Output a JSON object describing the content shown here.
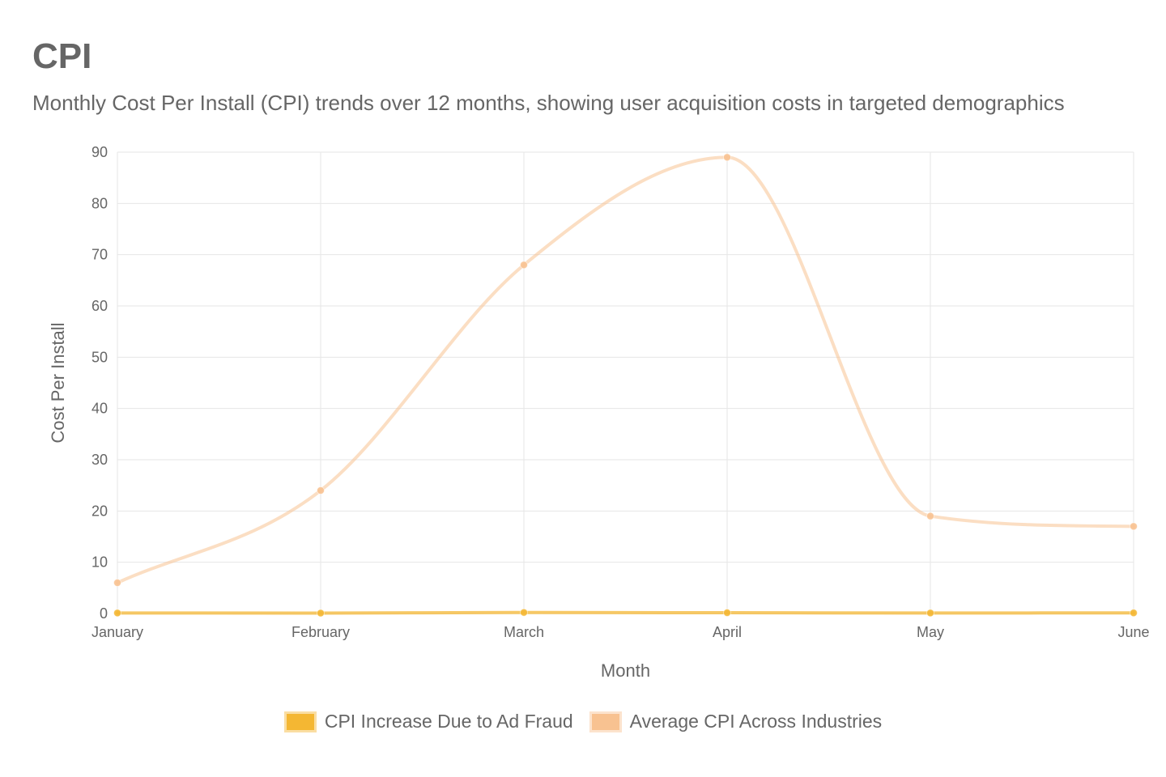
{
  "page": {
    "title": "CPI",
    "subtitle": "Monthly Cost Per Install (CPI) trends over 12 months, showing user acquisition costs in targeted demographics"
  },
  "chart_data": {
    "type": "line",
    "title": "CPI",
    "subtitle": "Monthly Cost Per Install (CPI) trends over 12 months, showing user acquisition costs in targeted demographics",
    "xlabel": "Month",
    "ylabel": "Cost Per Install",
    "categories": [
      "January",
      "February",
      "March",
      "April",
      "May",
      "June"
    ],
    "ylim": [
      0,
      90
    ],
    "yticks": [
      0,
      10,
      20,
      30,
      40,
      50,
      60,
      70,
      80,
      90
    ],
    "grid": true,
    "legend_position": "bottom",
    "series": [
      {
        "name": "CPI Increase Due to Ad Fraud",
        "values": [
          0.1,
          0.08,
          0.2,
          0.15,
          0.1,
          0.12
        ],
        "color": "#f4b733"
      },
      {
        "name": "Average CPI Across Industries",
        "values": [
          6,
          24,
          68,
          89,
          19,
          17
        ],
        "color": "#f8c291"
      }
    ]
  }
}
